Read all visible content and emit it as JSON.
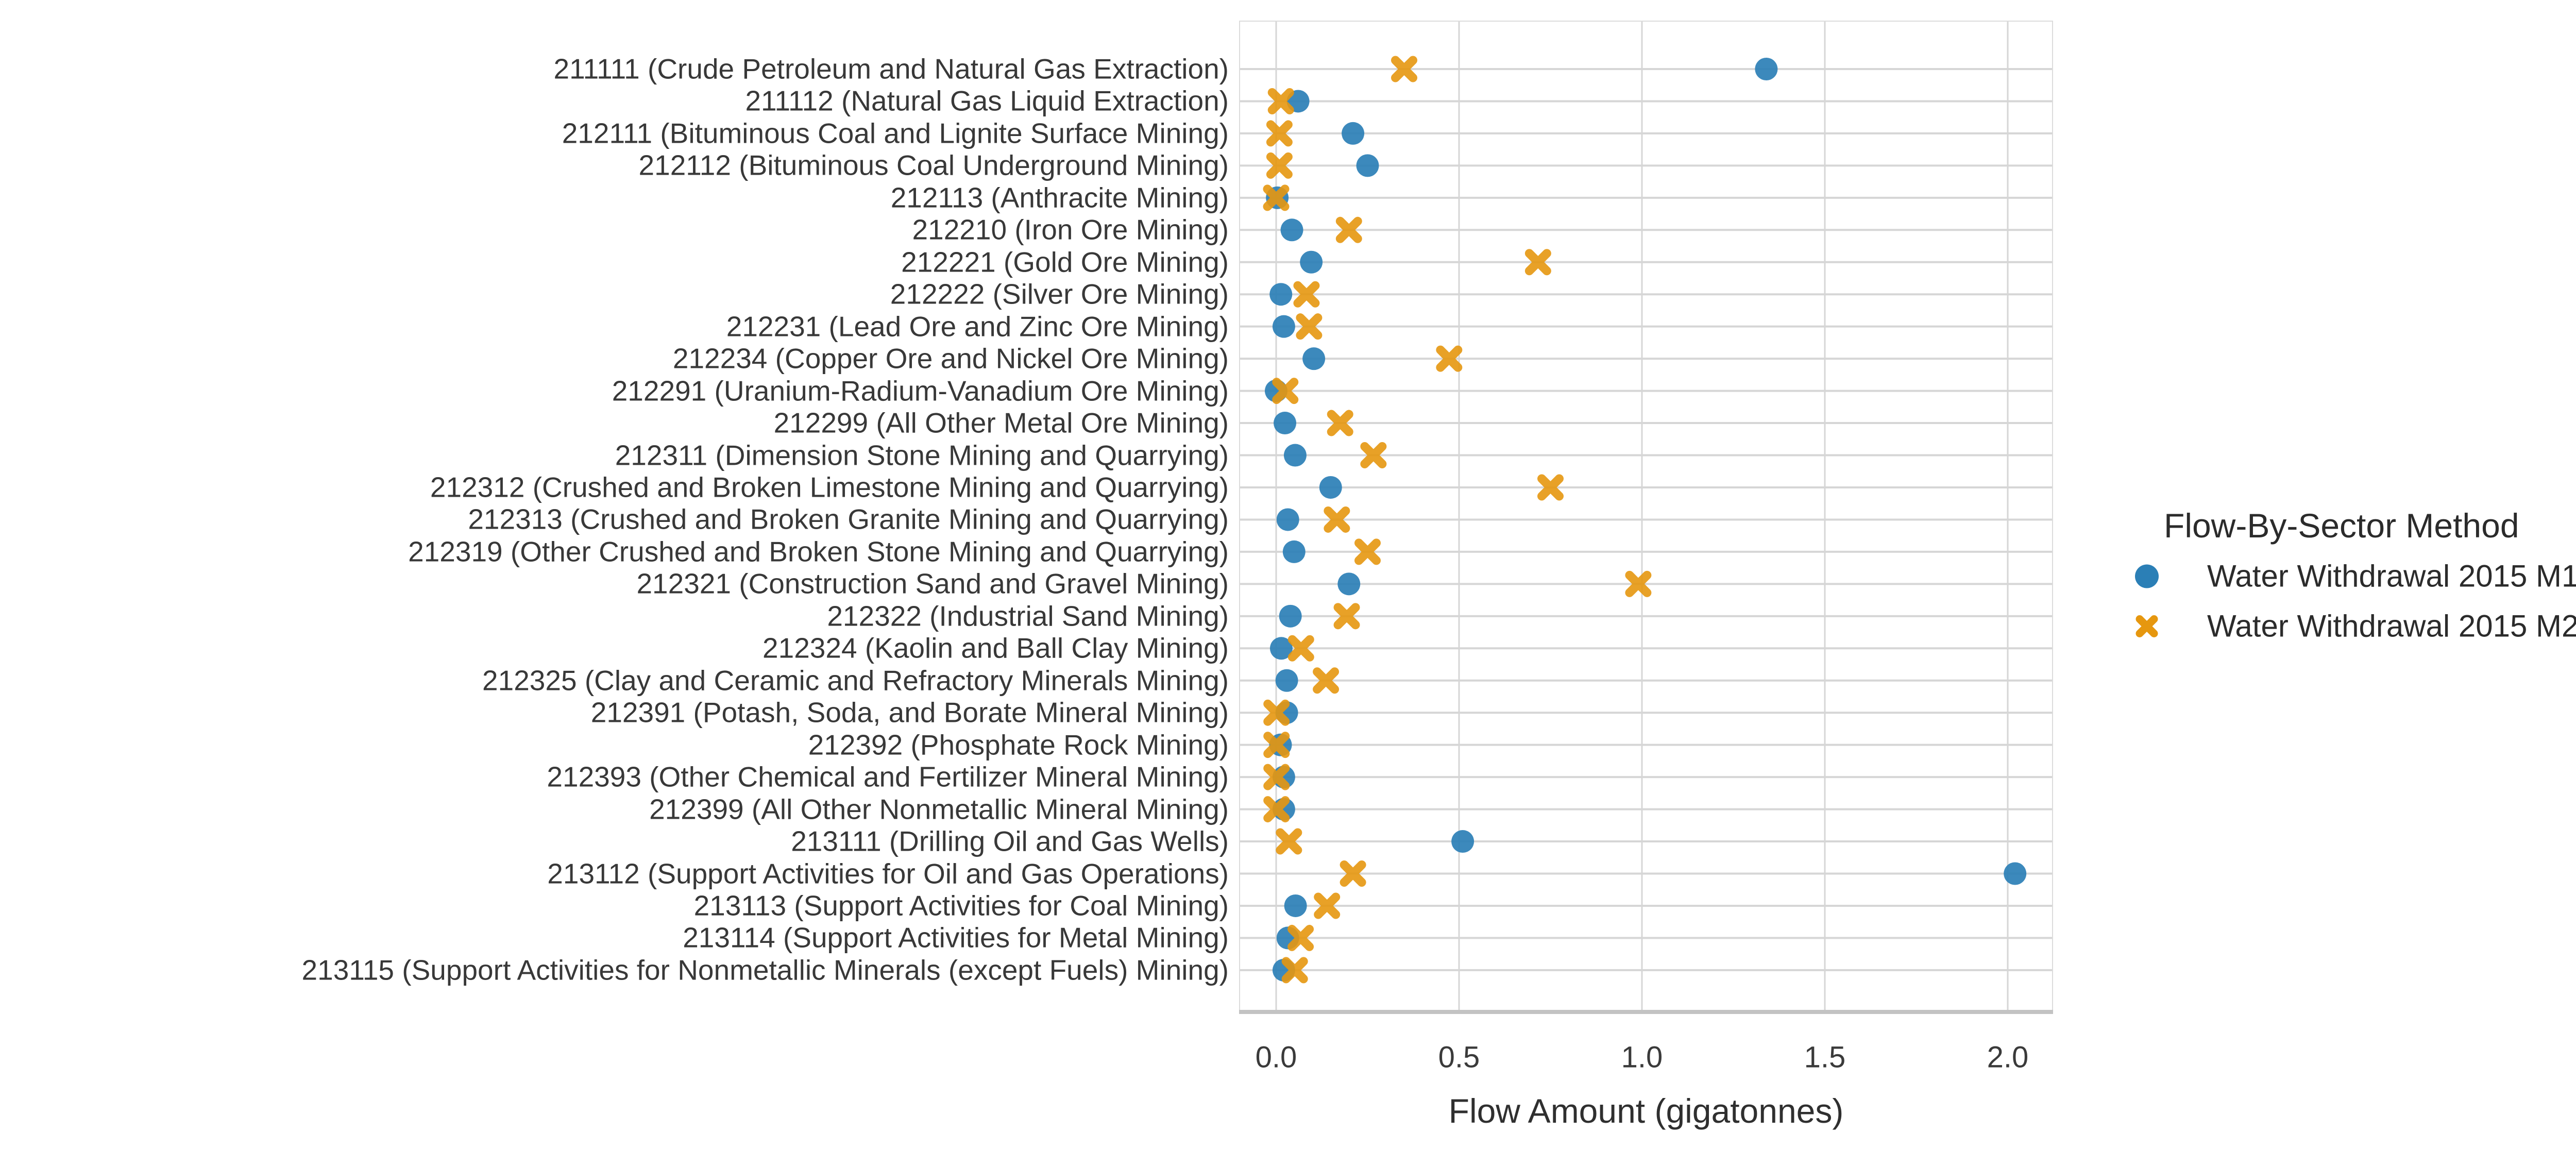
{
  "chart_data": {
    "type": "scatter",
    "subtype": "horizontal-dot-plot",
    "title": "",
    "xlabel": "Flow Amount (gigatonnes)",
    "ylabel": "",
    "x_ticks": [
      0.0,
      0.5,
      1.0,
      1.5,
      2.0
    ],
    "xlim": [
      -0.1,
      2.12
    ],
    "grid": true,
    "legend_position": "right",
    "categories": [
      "211111 (Crude Petroleum and Natural Gas Extraction)",
      "211112 (Natural Gas Liquid Extraction)",
      "212111 (Bituminous Coal and Lignite Surface Mining)",
      "212112 (Bituminous Coal Underground Mining)",
      "212113 (Anthracite Mining)",
      "212210 (Iron Ore Mining)",
      "212221 (Gold Ore Mining)",
      "212222 (Silver Ore Mining)",
      "212231 (Lead Ore and Zinc Ore Mining)",
      "212234 (Copper Ore and Nickel Ore Mining)",
      "212291 (Uranium-Radium-Vanadium Ore Mining)",
      "212299 (All Other Metal Ore Mining)",
      "212311 (Dimension Stone Mining and Quarrying)",
      "212312 (Crushed and Broken Limestone Mining and Quarrying)",
      "212313 (Crushed and Broken Granite Mining and Quarrying)",
      "212319 (Other Crushed and Broken Stone Mining and Quarrying)",
      "212321 (Construction Sand and Gravel Mining)",
      "212322 (Industrial Sand Mining)",
      "212324 (Kaolin and Ball Clay Mining)",
      "212325 (Clay and Ceramic and Refractory Minerals Mining)",
      "212391 (Potash, Soda, and Borate Mineral Mining)",
      "212392 (Phosphate Rock Mining)",
      "212393 (Other Chemical and Fertilizer Mineral Mining)",
      "212399 (All Other Nonmetallic Mineral Mining)",
      "213111 (Drilling Oil and Gas Wells)",
      "213112 (Support Activities for Oil and Gas Operations)",
      "213113 (Support Activities for Coal Mining)",
      "213114 (Support Activities for Metal Mining)",
      "213115 (Support Activities for Nonmetallic Minerals (except Fuels) Mining)"
    ],
    "series": [
      {
        "name": "Water Withdrawal 2015 M1",
        "marker": "circle",
        "color": "#2b7fb6",
        "values": [
          1.34,
          0.06,
          0.21,
          0.25,
          0.003,
          0.043,
          0.096,
          0.013,
          0.021,
          0.103,
          0.0,
          0.024,
          0.052,
          0.149,
          0.032,
          0.049,
          0.199,
          0.039,
          0.014,
          0.029,
          0.029,
          0.012,
          0.021,
          0.021,
          0.51,
          2.02,
          0.053,
          0.032,
          0.021
        ]
      },
      {
        "name": "Water Withdrawal 2015 M2",
        "marker": "x",
        "color": "#e6970f",
        "values": [
          0.35,
          0.013,
          0.009,
          0.009,
          0.0,
          0.199,
          0.716,
          0.083,
          0.09,
          0.473,
          0.025,
          0.175,
          0.266,
          0.75,
          0.166,
          0.25,
          0.99,
          0.193,
          0.068,
          0.136,
          0.001,
          0.001,
          0.001,
          0.001,
          0.035,
          0.21,
          0.139,
          0.067,
          0.051
        ]
      }
    ],
    "legend": {
      "title": "Flow-By-Sector Method"
    }
  },
  "style_colors": {
    "grid_major": "#d6d6d6",
    "panel_border": "#dcdcdc",
    "axis_line": "#c3c3c3",
    "text": "#3a3a3a"
  }
}
